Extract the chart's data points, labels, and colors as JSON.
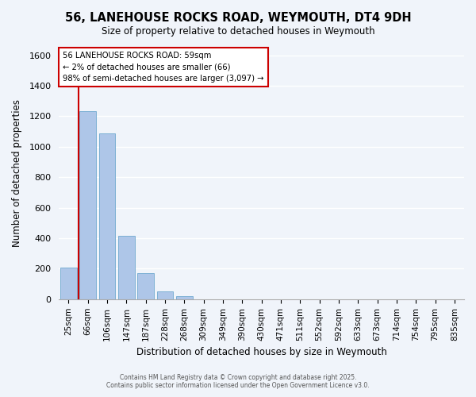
{
  "title": "56, LANEHOUSE ROCKS ROAD, WEYMOUTH, DT4 9DH",
  "subtitle": "Size of property relative to detached houses in Weymouth",
  "xlabel": "Distribution of detached houses by size in Weymouth",
  "ylabel": "Number of detached properties",
  "bar_color": "#aec6e8",
  "bar_edge_color": "#7bafd4",
  "background_color": "#f0f4fa",
  "categories": [
    "25sqm",
    "66sqm",
    "106sqm",
    "147sqm",
    "187sqm",
    "228sqm",
    "268sqm",
    "309sqm",
    "349sqm",
    "390sqm",
    "430sqm",
    "471sqm",
    "511sqm",
    "552sqm",
    "592sqm",
    "633sqm",
    "673sqm",
    "714sqm",
    "754sqm",
    "795sqm",
    "835sqm"
  ],
  "values": [
    205,
    1235,
    1085,
    415,
    170,
    52,
    22,
    0,
    0,
    0,
    0,
    0,
    0,
    0,
    0,
    0,
    0,
    0,
    0,
    0,
    0
  ],
  "ylim": [
    0,
    1650
  ],
  "yticks": [
    0,
    200,
    400,
    600,
    800,
    1000,
    1200,
    1400,
    1600
  ],
  "vline_x": 0.5,
  "vline_color": "#cc0000",
  "annotation_title": "56 LANEHOUSE ROCKS ROAD: 59sqm",
  "annotation_line1": "← 2% of detached houses are smaller (66)",
  "annotation_line2": "98% of semi-detached houses are larger (3,097) →",
  "annotation_box_color": "#ffffff",
  "annotation_box_edge": "#cc0000",
  "footer1": "Contains HM Land Registry data © Crown copyright and database right 2025.",
  "footer2": "Contains public sector information licensed under the Open Government Licence v3.0."
}
